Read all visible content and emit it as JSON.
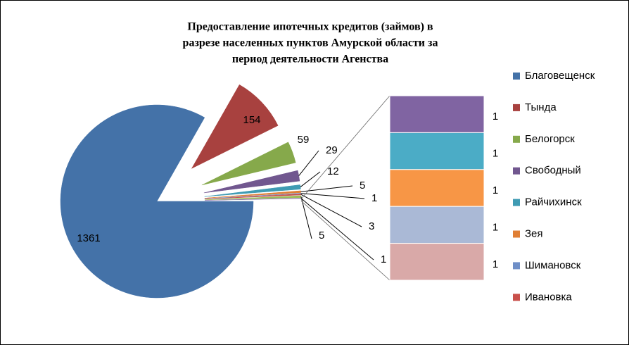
{
  "chart_data": {
    "type": "pie-of-bar",
    "title": [
      "Предоставление ипотечных кредитов (займов) в",
      "разрезе населенных пунктов Амурской области за",
      "период деятельности Агенства"
    ],
    "categories": [
      "Благовещенск",
      "Тында",
      "Белогорск",
      "Свободный",
      "Райчихинск",
      "Зея",
      "Шимановск",
      "Ивановка",
      null,
      null,
      null,
      null,
      null,
      null,
      null
    ],
    "values": [
      1361,
      154,
      59,
      29,
      12,
      5,
      1,
      3,
      5,
      1,
      1,
      1,
      1,
      1,
      1
    ],
    "colors": [
      "#4472a8",
      "#a8413f",
      "#86a94b",
      "#71578f",
      "#3f9bb3",
      "#e07f34",
      "#6f8fc7",
      "#c9504b",
      "#9bbb59",
      "#8064a2",
      "#8064a2",
      "#4bacc6",
      "#f79646",
      "#aab9d6",
      "#d9a9a8"
    ],
    "second_plot_values": 5
  }
}
